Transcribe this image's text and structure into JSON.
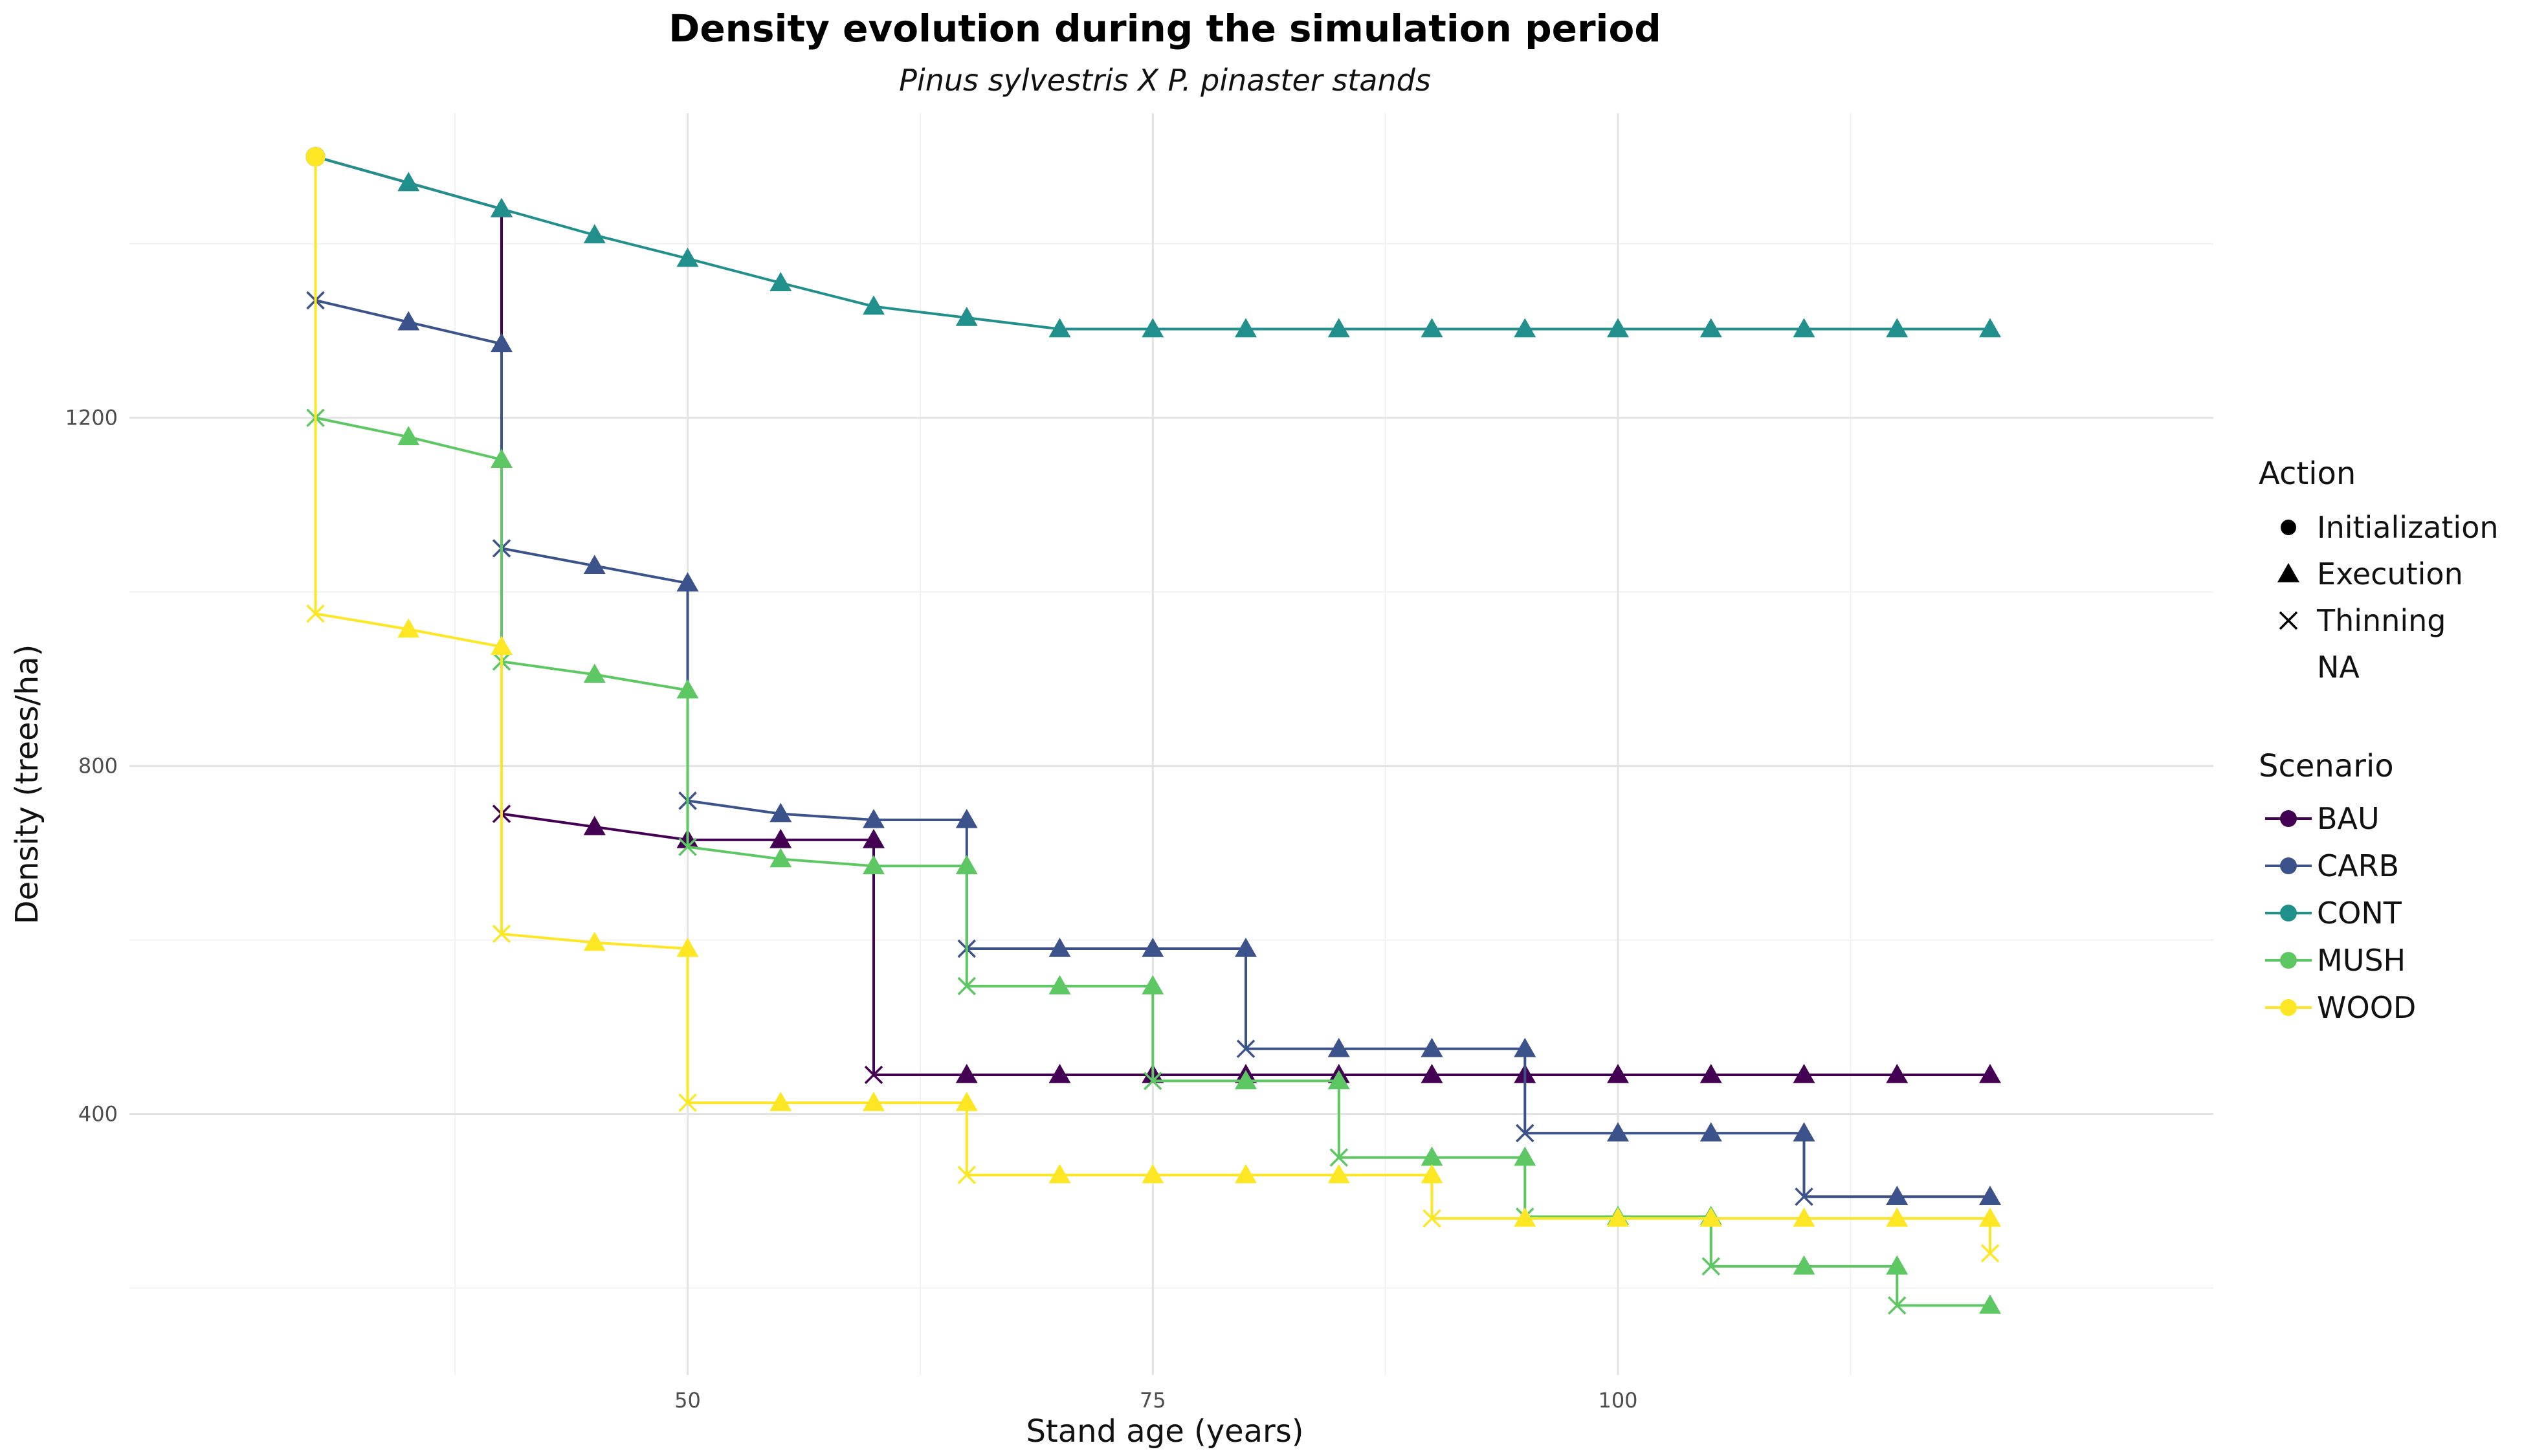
{
  "chart_data": {
    "type": "line",
    "title": "Density evolution during the simulation period",
    "subtitle": "Pinus sylvestris X P. pinaster stands",
    "xlabel": "Stand age (years)",
    "ylabel": "Density (trees/ha)",
    "xlim": [
      20,
      132
    ],
    "ylim": [
      100,
      1550
    ],
    "x_ticks": [
      50,
      75,
      100
    ],
    "x_minor": [
      37.5,
      62.5,
      87.5,
      112.5
    ],
    "y_ticks": [
      400,
      800,
      1200
    ],
    "y_minor": [
      200,
      600,
      1000,
      1400
    ],
    "grid": true,
    "legend_position": "right",
    "legend_action": {
      "title": "Action",
      "items": [
        {
          "label": "Initialization",
          "shape": "circle"
        },
        {
          "label": "Execution",
          "shape": "triangle"
        },
        {
          "label": "Thinning",
          "shape": "cross"
        },
        {
          "label": "NA",
          "shape": "none"
        }
      ]
    },
    "legend_scenario": {
      "title": "Scenario"
    },
    "series": [
      {
        "name": "BAU",
        "color": "#440154",
        "points": [
          [
            30,
            1500,
            "init"
          ],
          [
            40,
            1440,
            "exec"
          ],
          [
            40,
            745,
            "thin"
          ],
          [
            45,
            730,
            "exec"
          ],
          [
            50,
            715,
            "exec"
          ],
          [
            55,
            715,
            "exec"
          ],
          [
            60,
            715,
            "exec"
          ],
          [
            60,
            445,
            "thin"
          ],
          [
            65,
            445,
            "exec"
          ],
          [
            70,
            445,
            "exec"
          ],
          [
            75,
            445,
            "exec"
          ],
          [
            80,
            445,
            "exec"
          ],
          [
            85,
            445,
            "exec"
          ],
          [
            90,
            445,
            "exec"
          ],
          [
            95,
            445,
            "exec"
          ],
          [
            100,
            445,
            "exec"
          ],
          [
            105,
            445,
            "exec"
          ],
          [
            110,
            445,
            "exec"
          ],
          [
            115,
            445,
            "exec"
          ],
          [
            120,
            445,
            "exec"
          ]
        ]
      },
      {
        "name": "CARB",
        "color": "#3B528B",
        "points": [
          [
            30,
            1500,
            "init"
          ],
          [
            30,
            1335,
            "thin"
          ],
          [
            35,
            1310,
            "exec"
          ],
          [
            40,
            1285,
            "exec"
          ],
          [
            40,
            1050,
            "thin"
          ],
          [
            45,
            1030,
            "exec"
          ],
          [
            50,
            1010,
            "exec"
          ],
          [
            50,
            760,
            "thin"
          ],
          [
            55,
            745,
            "exec"
          ],
          [
            60,
            738,
            "exec"
          ],
          [
            65,
            738,
            "exec"
          ],
          [
            65,
            590,
            "thin"
          ],
          [
            70,
            590,
            "exec"
          ],
          [
            75,
            590,
            "exec"
          ],
          [
            80,
            590,
            "exec"
          ],
          [
            80,
            475,
            "thin"
          ],
          [
            85,
            475,
            "exec"
          ],
          [
            90,
            475,
            "exec"
          ],
          [
            95,
            475,
            "exec"
          ],
          [
            95,
            378,
            "thin"
          ],
          [
            100,
            378,
            "exec"
          ],
          [
            105,
            378,
            "exec"
          ],
          [
            110,
            378,
            "exec"
          ],
          [
            110,
            305,
            "thin"
          ],
          [
            115,
            305,
            "exec"
          ],
          [
            120,
            305,
            "exec"
          ]
        ]
      },
      {
        "name": "CONT",
        "color": "#21908C",
        "points": [
          [
            30,
            1500,
            "init"
          ],
          [
            35,
            1470,
            "exec"
          ],
          [
            40,
            1440,
            "exec"
          ],
          [
            45,
            1410,
            "exec"
          ],
          [
            50,
            1383,
            "exec"
          ],
          [
            55,
            1355,
            "exec"
          ],
          [
            60,
            1328,
            "exec"
          ],
          [
            65,
            1315,
            "exec"
          ],
          [
            70,
            1302,
            "exec"
          ],
          [
            75,
            1302,
            "exec"
          ],
          [
            80,
            1302,
            "exec"
          ],
          [
            85,
            1302,
            "exec"
          ],
          [
            90,
            1302,
            "exec"
          ],
          [
            95,
            1302,
            "exec"
          ],
          [
            100,
            1302,
            "exec"
          ],
          [
            105,
            1302,
            "exec"
          ],
          [
            110,
            1302,
            "exec"
          ],
          [
            115,
            1302,
            "exec"
          ],
          [
            120,
            1302,
            "exec"
          ]
        ]
      },
      {
        "name": "MUSH",
        "color": "#5DC863",
        "points": [
          [
            30,
            1500,
            "init"
          ],
          [
            30,
            1200,
            "thin"
          ],
          [
            35,
            1178,
            "exec"
          ],
          [
            40,
            1152,
            "exec"
          ],
          [
            40,
            920,
            "thin"
          ],
          [
            45,
            905,
            "exec"
          ],
          [
            50,
            887,
            "exec"
          ],
          [
            50,
            707,
            "thin"
          ],
          [
            55,
            693,
            "exec"
          ],
          [
            60,
            685,
            "exec"
          ],
          [
            65,
            685,
            "exec"
          ],
          [
            65,
            547,
            "thin"
          ],
          [
            70,
            547,
            "exec"
          ],
          [
            75,
            547,
            "exec"
          ],
          [
            75,
            438,
            "thin"
          ],
          [
            80,
            438,
            "exec"
          ],
          [
            85,
            438,
            "exec"
          ],
          [
            85,
            350,
            "thin"
          ],
          [
            90,
            350,
            "exec"
          ],
          [
            95,
            350,
            "exec"
          ],
          [
            95,
            282,
            "thin"
          ],
          [
            100,
            282,
            "exec"
          ],
          [
            105,
            282,
            "exec"
          ],
          [
            105,
            225,
            "thin"
          ],
          [
            110,
            225,
            "exec"
          ],
          [
            115,
            225,
            "exec"
          ],
          [
            115,
            180,
            "thin"
          ],
          [
            120,
            180,
            "exec"
          ]
        ]
      },
      {
        "name": "WOOD",
        "color": "#FDE725",
        "points": [
          [
            30,
            1500,
            "init"
          ],
          [
            30,
            975,
            "thin"
          ],
          [
            35,
            957,
            "exec"
          ],
          [
            40,
            937,
            "exec"
          ],
          [
            40,
            607,
            "thin"
          ],
          [
            45,
            597,
            "exec"
          ],
          [
            50,
            590,
            "exec"
          ],
          [
            50,
            413,
            "thin"
          ],
          [
            55,
            413,
            "exec"
          ],
          [
            60,
            413,
            "exec"
          ],
          [
            65,
            413,
            "exec"
          ],
          [
            65,
            330,
            "thin"
          ],
          [
            70,
            330,
            "exec"
          ],
          [
            75,
            330,
            "exec"
          ],
          [
            80,
            330,
            "exec"
          ],
          [
            85,
            330,
            "exec"
          ],
          [
            90,
            330,
            "exec"
          ],
          [
            90,
            280,
            "thin"
          ],
          [
            95,
            280,
            "exec"
          ],
          [
            100,
            280,
            "exec"
          ],
          [
            105,
            280,
            "exec"
          ],
          [
            110,
            280,
            "exec"
          ],
          [
            115,
            280,
            "exec"
          ],
          [
            120,
            280,
            "exec"
          ],
          [
            120,
            240,
            "thin"
          ]
        ]
      }
    ]
  }
}
